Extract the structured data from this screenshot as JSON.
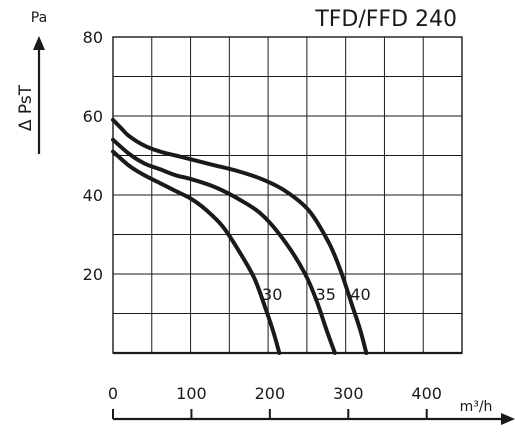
{
  "chart_data": {
    "type": "line",
    "title": "TFD/FFD 240",
    "ylabel": "Δ PsT",
    "yunit": "Pa",
    "xunit": "m³/h",
    "xlim": [
      0,
      400
    ],
    "ylim": [
      0,
      80
    ],
    "grid": true,
    "y_ticks": [
      20,
      40,
      60,
      80
    ],
    "x_ticks": [
      0,
      100,
      200,
      300,
      400
    ],
    "series": [
      {
        "name": "30",
        "x": [
          0,
          20,
          40,
          60,
          80,
          100,
          120,
          140,
          160,
          180,
          195,
          205,
          212
        ],
        "y": [
          51,
          47.5,
          45,
          43,
          41,
          39,
          36,
          32,
          26,
          19,
          11,
          5,
          0
        ]
      },
      {
        "name": "35",
        "x": [
          0,
          20,
          40,
          60,
          80,
          100,
          130,
          160,
          190,
          220,
          245,
          260,
          272,
          283
        ],
        "y": [
          54,
          50.5,
          48,
          46.5,
          45,
          44,
          42,
          39,
          35,
          28,
          20,
          13,
          6,
          0
        ]
      },
      {
        "name": "40",
        "x": [
          0,
          10,
          20,
          40,
          60,
          80,
          100,
          130,
          160,
          190,
          220,
          250,
          275,
          290,
          305,
          315,
          323
        ],
        "y": [
          59,
          57,
          55,
          52.5,
          51,
          50,
          49,
          47.5,
          46,
          44,
          41,
          36,
          28,
          21,
          12,
          6,
          0
        ]
      }
    ]
  }
}
